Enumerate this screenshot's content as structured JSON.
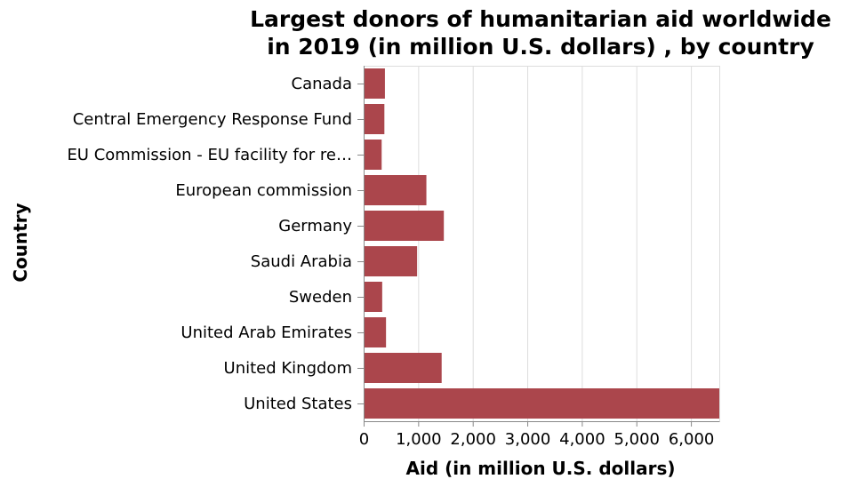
{
  "chart_data": {
    "type": "bar",
    "orientation": "horizontal",
    "title": [
      "Largest donors of humanitarian aid worldwide",
      "in 2019 (in million U.S. dollars) , by country"
    ],
    "xlabel": "Aid (in million U.S. dollars)",
    "ylabel": "Country",
    "categories": [
      "Canada",
      "Central Emergency Response Fund",
      "EU Commission - EU facility for re…",
      "European commission",
      "Germany",
      "Saudi Arabia",
      "Sweden",
      "United Arab Emirates",
      "United Kingdom",
      "United States"
    ],
    "values": [
      390,
      380,
      330,
      1150,
      1470,
      980,
      340,
      410,
      1430,
      6520
    ],
    "xlim": [
      0,
      6520
    ],
    "xticks": [
      0,
      1000,
      2000,
      3000,
      4000,
      5000,
      6000
    ],
    "xtick_labels": [
      "0",
      "1,000",
      "2,000",
      "3,000",
      "4,000",
      "5,000",
      "6,000"
    ],
    "bar_color": "#ab464c",
    "grid": true
  }
}
